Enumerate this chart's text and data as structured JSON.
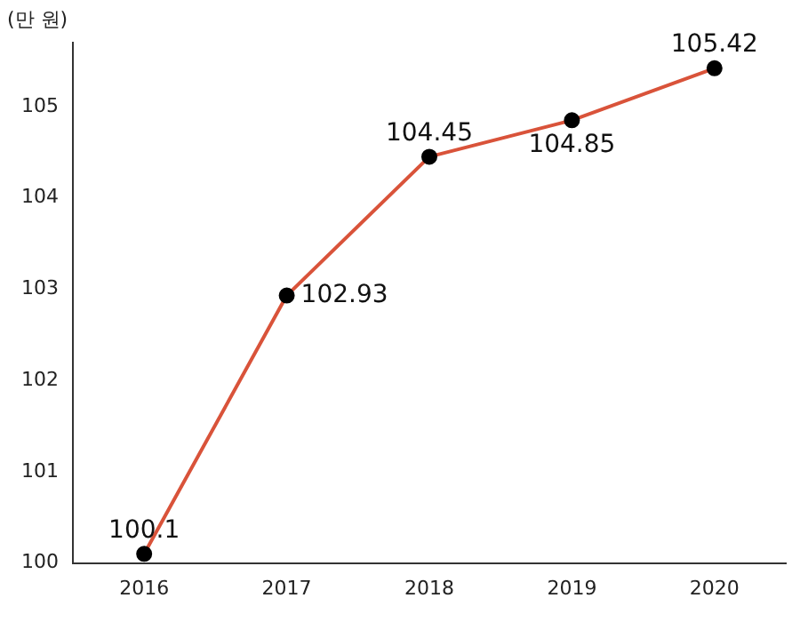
{
  "chart_data": {
    "type": "line",
    "ylabel": "(만 원)",
    "categories": [
      "2016",
      "2017",
      "2018",
      "2019",
      "2020"
    ],
    "series": [
      {
        "color": "#d9533a",
        "values": [
          100.1,
          102.93,
          104.45,
          104.85,
          105.42
        ]
      }
    ],
    "ylim": [
      100,
      105.7
    ],
    "yticks": [
      100,
      101,
      102,
      103,
      104,
      105
    ],
    "grid": false,
    "legend": false,
    "marker": "circle",
    "line_style": "solid",
    "data_labels": true
  }
}
